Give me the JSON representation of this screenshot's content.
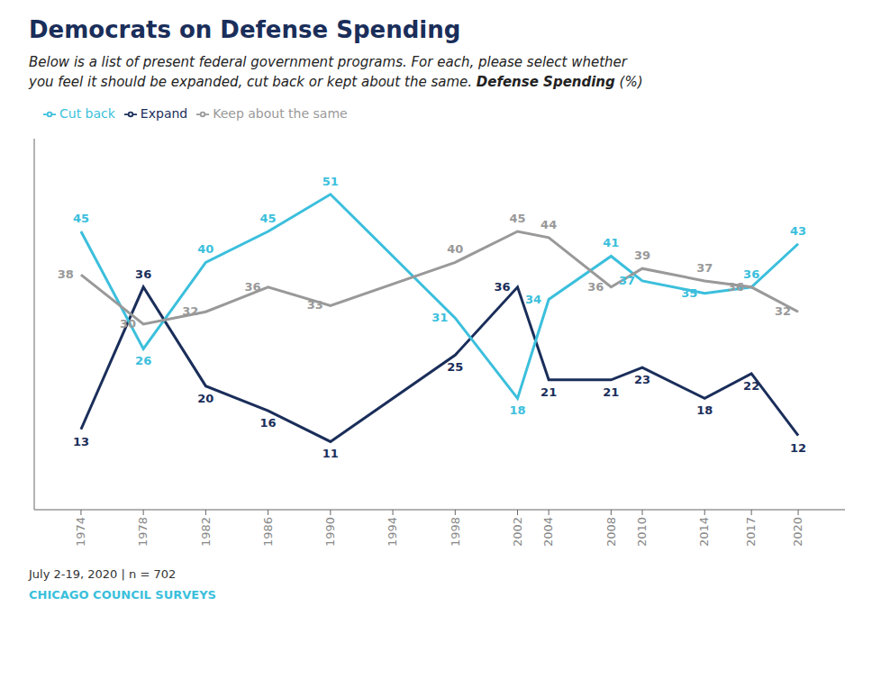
{
  "chart_data": {
    "type": "line",
    "title": "Democrats on Defense Spending",
    "color": "#1a2e5a",
    "subtitle": [
      "Below is a list of present federal government programs.  For each, please select whether",
      "you feel it should be expanded, cut back or kept about the same. ",
      "Defense Spending",
      " (%)"
    ],
    "annotations": [
      {
        "text": "July 2-19, 2020 | n = 702",
        "color": "#333333"
      },
      {
        "text": "CHICAGO COUNCIL SURVEYS",
        "color": "#3bbfdc"
      }
    ],
    "x": [
      1974,
      1978,
      1982,
      1986,
      1990,
      1994,
      1998,
      2002,
      2004,
      2008,
      2010,
      2014,
      2017,
      2020
    ],
    "series": [
      {
        "name": "Expand",
        "color": "#1a2e5a",
        "values": [
          13,
          36,
          20,
          16,
          11,
          null,
          25,
          36,
          21,
          21,
          23,
          18,
          22,
          12
        ]
      },
      {
        "name": "Cut back",
        "color": "#3bbfdc",
        "values": [
          45,
          26,
          40,
          45,
          51,
          null,
          31,
          18,
          34,
          41,
          37,
          35,
          36,
          43
        ]
      },
      {
        "name": "Keep about the same",
        "color": "#999999",
        "values": [
          38,
          30,
          32,
          36,
          33,
          null,
          40,
          45,
          44,
          36,
          39,
          37,
          36,
          32
        ]
      }
    ],
    "xlim": [
      1971,
      2023
    ],
    "xticks": [
      1974,
      1978,
      1982,
      1986,
      1990,
      1994,
      1998,
      2002,
      2004,
      2008,
      2010,
      2014,
      2017,
      2020
    ],
    "ylim": [
      0,
      60
    ],
    "data_labels": true,
    "tick_labels": "x",
    "grid": false,
    "legend": "top left"
  }
}
